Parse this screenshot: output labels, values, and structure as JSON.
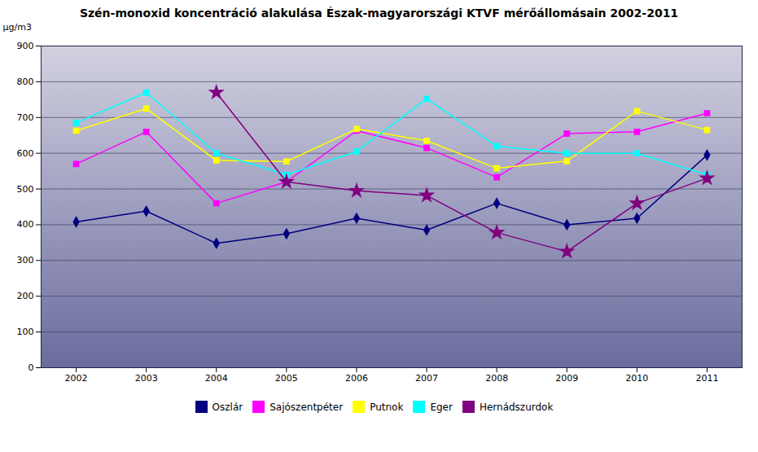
{
  "chart_data": {
    "type": "line",
    "title": "Szén-monoxid koncentráció alakulása Észak-magyarországi KTVF mérőállomásain 2002-2011",
    "ylabel": "µg/m3",
    "x": [
      2002,
      2003,
      2004,
      2005,
      2006,
      2007,
      2008,
      2009,
      2010,
      2011
    ],
    "xlim": [
      2001.5,
      2011.5
    ],
    "xticks": [
      2002,
      2003,
      2004,
      2005,
      2006,
      2007,
      2008,
      2009,
      2010,
      2011
    ],
    "ylim": [
      0,
      900
    ],
    "yticks": [
      0,
      100,
      200,
      300,
      400,
      500,
      600,
      700,
      800,
      900
    ],
    "grid": true,
    "legend": "bottom",
    "series": [
      {
        "name": "Oszlár",
        "color": "#000080",
        "marker": "diamond",
        "values": [
          408,
          438,
          348,
          375,
          418,
          385,
          460,
          400,
          418,
          595
        ]
      },
      {
        "name": "Sajószentpéter",
        "color": "#FF00FF",
        "marker": "square",
        "values": [
          570,
          660,
          460,
          520,
          663,
          615,
          533,
          655,
          660,
          712
        ]
      },
      {
        "name": "Putnok",
        "color": "#FFFF00",
        "marker": "square",
        "values": [
          663,
          725,
          580,
          577,
          668,
          635,
          558,
          578,
          718,
          665
        ]
      },
      {
        "name": "Eger",
        "color": "#00FFFF",
        "marker": "square",
        "values": [
          685,
          770,
          600,
          540,
          605,
          752,
          620,
          600,
          600,
          540
        ]
      },
      {
        "name": "Hernádszurdok",
        "color": "#800080",
        "marker": "star",
        "values": [
          null,
          null,
          770,
          520,
          495,
          482,
          378,
          325,
          460,
          530
        ]
      }
    ]
  }
}
